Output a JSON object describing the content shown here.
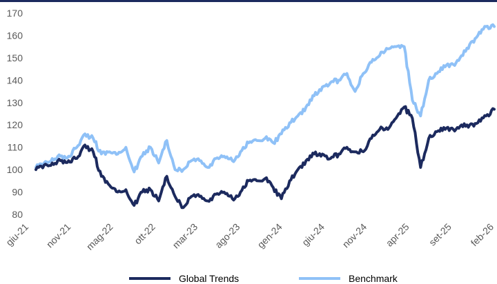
{
  "chart_data": {
    "type": "line",
    "title": "",
    "xlabel": "",
    "ylabel": "",
    "ylim": [
      80,
      170
    ],
    "yticks": [
      80,
      90,
      100,
      110,
      120,
      130,
      140,
      150,
      160,
      170
    ],
    "xticks": [
      "giu-21",
      "nov-21",
      "mag-22",
      "ott-22",
      "mar-23",
      "ago-23",
      "gen-24",
      "giu-24",
      "nov-24",
      "apr-25",
      "set-25",
      "feb-26"
    ],
    "grid": false,
    "legend": "bottom",
    "x": [
      "giu-21",
      "lug-21",
      "ago-21",
      "set-21",
      "ott-21",
      "nov-21",
      "dic-21",
      "gen-22",
      "feb-22",
      "mar-22",
      "apr-22",
      "mag-22",
      "giu-22",
      "lug-22",
      "ago-22",
      "set-22",
      "ott-22",
      "nov-22",
      "dic-22",
      "gen-23",
      "feb-23",
      "mar-23",
      "apr-23",
      "mag-23",
      "giu-23",
      "lug-23",
      "ago-23",
      "set-23",
      "ott-23",
      "nov-23",
      "dic-23",
      "gen-24",
      "feb-24",
      "mar-24",
      "apr-24",
      "mag-24",
      "giu-24",
      "lug-24",
      "ago-24",
      "set-24",
      "ott-24",
      "nov-24",
      "dic-24",
      "gen-25",
      "feb-25",
      "mar-25",
      "apr-25",
      "mag-25",
      "giu-25",
      "lug-25",
      "ago-25",
      "set-25",
      "ott-25",
      "nov-25",
      "dic-25",
      "gen-26",
      "feb-26"
    ],
    "series": [
      {
        "name": "Global Trends",
        "color": "#1c2a5e",
        "values": [
          100,
          102,
          103,
          104,
          104,
          105,
          111,
          108,
          97,
          93,
          90,
          91,
          84,
          90,
          91,
          86,
          97,
          88,
          83,
          88,
          88,
          86,
          89,
          90,
          87,
          90,
          95,
          95,
          96,
          92,
          87,
          95,
          100,
          104,
          107,
          107,
          105,
          107,
          110,
          108,
          108,
          114,
          118,
          118,
          123,
          128,
          123,
          101,
          114,
          117,
          118,
          118,
          120,
          120,
          121,
          124,
          127
        ]
      },
      {
        "name": "Benchmark",
        "color": "#8fc1f7",
        "values": [
          101,
          103,
          105,
          106,
          106,
          110,
          116,
          114,
          107,
          108,
          107,
          110,
          99,
          106,
          110,
          103,
          113,
          100,
          100,
          104,
          104,
          101,
          105,
          106,
          104,
          108,
          112,
          113,
          114,
          112,
          116,
          121,
          124,
          128,
          133,
          137,
          139,
          140,
          143,
          135,
          143,
          148,
          151,
          154,
          155,
          155,
          131,
          124,
          140,
          143,
          146,
          147,
          151,
          156,
          160,
          164,
          164
        ]
      }
    ]
  }
}
